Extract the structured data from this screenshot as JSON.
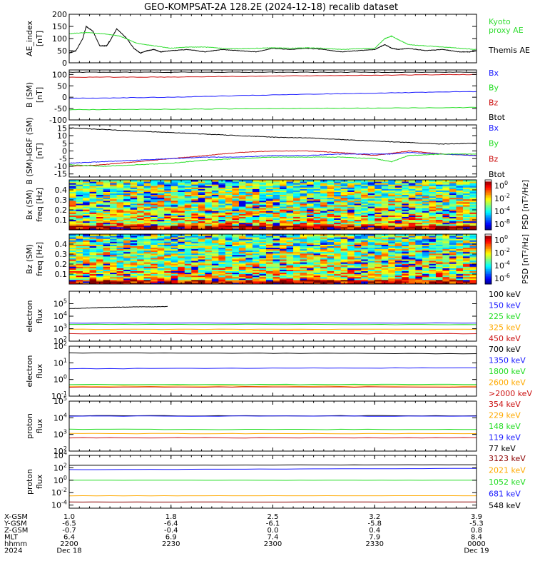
{
  "title": "GEO-KOMPSAT-2A 128.2E (2024-12-18) recalib dataset",
  "colors": {
    "black": "#000000",
    "blue": "#1a1aff",
    "green": "#22dd22",
    "red": "#cc1111",
    "orange": "#ffaa00",
    "darkred": "#8b0000",
    "ae": "#33dd33"
  },
  "chart_data": [
    {
      "type": "line",
      "id": "ae",
      "ylabel": [
        "AE_index",
        "[nT]"
      ],
      "ylim": [
        0,
        200
      ],
      "yticks": [
        0,
        50,
        100,
        150,
        200
      ],
      "xlim": [
        0,
        120
      ],
      "labels": [
        {
          "text": "Kyoto",
          "color": "#33dd33"
        },
        {
          "text": "proxy AE",
          "color": "#33dd33"
        },
        {
          "text": "Themis AE",
          "color": "#000000"
        }
      ],
      "series": [
        {
          "name": "Themis AE",
          "color": "#000000",
          "x": [
            0,
            2,
            4,
            5,
            7,
            9,
            11,
            12,
            14,
            17,
            19,
            21,
            23,
            25,
            27,
            30,
            35,
            40,
            45,
            50,
            55,
            60,
            65,
            70,
            75,
            80,
            85,
            90,
            93,
            95,
            97,
            100,
            105,
            110,
            115,
            118,
            120
          ],
          "y": [
            40,
            50,
            100,
            150,
            130,
            70,
            70,
            90,
            140,
            100,
            60,
            40,
            50,
            55,
            45,
            50,
            55,
            45,
            55,
            50,
            45,
            60,
            55,
            60,
            55,
            45,
            50,
            55,
            75,
            60,
            55,
            60,
            50,
            55,
            45,
            45,
            50
          ]
        },
        {
          "name": "Kyoto proxy AE",
          "color": "#33dd33",
          "x": [
            0,
            5,
            10,
            15,
            20,
            25,
            30,
            35,
            40,
            45,
            50,
            55,
            60,
            65,
            70,
            75,
            80,
            85,
            90,
            93,
            95,
            97,
            100,
            105,
            110,
            115,
            120
          ],
          "y": [
            120,
            125,
            120,
            110,
            80,
            70,
            60,
            65,
            65,
            60,
            58,
            60,
            62,
            60,
            62,
            60,
            55,
            58,
            60,
            100,
            110,
            95,
            75,
            70,
            65,
            60,
            55
          ]
        }
      ]
    },
    {
      "type": "line",
      "id": "bsm",
      "ylabel": [
        "B (SM)",
        "[nT]"
      ],
      "ylim": [
        -100,
        120
      ],
      "yticks": [
        -100,
        -50,
        0,
        50,
        100
      ],
      "xlim": [
        0,
        120
      ],
      "labels": [
        {
          "text": "Bx",
          "color": "#1a1aff"
        },
        {
          "text": "By",
          "color": "#22dd22"
        },
        {
          "text": "Bz",
          "color": "#cc1111"
        },
        {
          "text": "Btot",
          "color": "#000000"
        }
      ],
      "series": [
        {
          "name": "Btot",
          "color": "#000000",
          "x": [
            0,
            30,
            60,
            90,
            120
          ],
          "y": [
            110,
            110,
            110,
            110,
            110
          ]
        },
        {
          "name": "Bz",
          "color": "#cc1111",
          "x": [
            0,
            30,
            60,
            90,
            120
          ],
          "y": [
            88,
            89,
            93,
            97,
            100
          ]
        },
        {
          "name": "Bx",
          "color": "#1a1aff",
          "x": [
            0,
            30,
            60,
            90,
            120
          ],
          "y": [
            -5,
            0,
            10,
            18,
            25
          ]
        },
        {
          "name": "By",
          "color": "#22dd22",
          "x": [
            0,
            30,
            60,
            90,
            120
          ],
          "y": [
            -55,
            -53,
            -50,
            -48,
            -45
          ]
        }
      ]
    },
    {
      "type": "line",
      "id": "bigrf",
      "ylabel": [
        "B (SM)-IGRF (SM)",
        "[nT]"
      ],
      "ylim": [
        -17,
        17
      ],
      "yticks": [
        -15,
        -10,
        -5,
        0,
        5,
        10,
        15
      ],
      "xlim": [
        0,
        120
      ],
      "labels": [
        {
          "text": "Bx",
          "color": "#1a1aff"
        },
        {
          "text": "By",
          "color": "#22dd22"
        },
        {
          "text": "Bz",
          "color": "#cc1111"
        },
        {
          "text": "Btot",
          "color": "#000000"
        }
      ],
      "series": [
        {
          "name": "Btot",
          "color": "#000000",
          "x": [
            0,
            10,
            20,
            30,
            40,
            50,
            60,
            70,
            80,
            90,
            100,
            110,
            120
          ],
          "y": [
            15,
            14,
            13,
            12,
            11,
            10,
            9,
            8.5,
            7.5,
            6.5,
            5.5,
            4.5,
            5
          ]
        },
        {
          "name": "Bz",
          "color": "#cc1111",
          "x": [
            0,
            10,
            20,
            30,
            40,
            50,
            60,
            70,
            80,
            90,
            100,
            105,
            110,
            120
          ],
          "y": [
            -10,
            -9,
            -7,
            -5,
            -3,
            -1,
            0,
            0,
            -1,
            -3,
            0,
            -1,
            -2,
            -3
          ]
        },
        {
          "name": "Bx",
          "color": "#1a1aff",
          "x": [
            0,
            10,
            20,
            30,
            40,
            50,
            60,
            70,
            80,
            90,
            95,
            100,
            110,
            120
          ],
          "y": [
            -8,
            -7,
            -6,
            -5,
            -4,
            -4,
            -3,
            -3,
            -2,
            -2,
            -2,
            -1,
            -2,
            -3
          ]
        },
        {
          "name": "By",
          "color": "#22dd22",
          "x": [
            0,
            10,
            20,
            30,
            40,
            50,
            60,
            70,
            80,
            90,
            95,
            100,
            110,
            120
          ],
          "y": [
            -9,
            -10,
            -9,
            -8,
            -6,
            -5,
            -4,
            -4,
            -4,
            -5,
            -7,
            -3,
            -2,
            -2
          ]
        }
      ]
    },
    {
      "type": "heatmap",
      "id": "bxspec",
      "ylabel": [
        "Bx (SM)",
        "freq [Hz]"
      ],
      "ylim": [
        0,
        0.5
      ],
      "yticks": [
        0.1,
        0.2,
        0.3,
        0.4
      ],
      "xlim": [
        0,
        120
      ],
      "colorbar": {
        "label": "PSD [nT²/Hz]",
        "ticks": [
          "10^0",
          "10^-2",
          "10^-4",
          "10^-8"
        ]
      }
    },
    {
      "type": "heatmap",
      "id": "bzspec",
      "ylabel": [
        "Bz (SM)",
        "freq [Hz]"
      ],
      "ylim": [
        0,
        0.5
      ],
      "yticks": [
        0.1,
        0.2,
        0.3,
        0.4
      ],
      "xlim": [
        0,
        120
      ],
      "colorbar": {
        "label": "PSD [nT²/Hz]",
        "ticks": [
          "10^0",
          "10^-2",
          "10^-4",
          "10^-6"
        ]
      }
    },
    {
      "type": "line",
      "id": "e1",
      "log": true,
      "ylabel": [
        "electron",
        "flux"
      ],
      "ylim": [
        2,
        6
      ],
      "yticks": [
        "10^2",
        "10^3",
        "10^4",
        "10^5"
      ],
      "xlim": [
        0,
        120
      ],
      "labels": [
        {
          "text": "100 keV",
          "color": "#000000"
        },
        {
          "text": "150 keV",
          "color": "#1a1aff"
        },
        {
          "text": "225 keV",
          "color": "#22dd22"
        },
        {
          "text": "325 keV",
          "color": "#ffaa00"
        },
        {
          "text": "450 keV",
          "color": "#cc1111"
        }
      ],
      "series": [
        {
          "name": "100 keV",
          "color": "#000000",
          "x": [
            0,
            5,
            10,
            15,
            20,
            25,
            29
          ],
          "y": [
            4.6,
            4.65,
            4.7,
            4.72,
            4.75,
            4.75,
            4.78
          ]
        },
        {
          "name": "150 keV",
          "color": "#1a1aff",
          "x": [
            0,
            120
          ],
          "y": [
            3.45,
            3.45
          ]
        },
        {
          "name": "225 keV",
          "color": "#22dd22",
          "x": [
            0,
            120
          ],
          "y": [
            3.35,
            3.32
          ]
        },
        {
          "name": "325 keV",
          "color": "#ffaa00",
          "x": [
            0,
            120
          ],
          "y": [
            2.95,
            2.95
          ]
        },
        {
          "name": "450 keV",
          "color": "#cc1111",
          "x": [
            0,
            120
          ],
          "y": [
            2.6,
            2.6
          ]
        }
      ]
    },
    {
      "type": "line",
      "id": "e2",
      "log": true,
      "ylabel": [
        "electron",
        "flux"
      ],
      "ylim": [
        -1,
        2
      ],
      "yticks": [
        "10^-1",
        "10^0",
        "10^1",
        "10^2"
      ],
      "xlim": [
        0,
        120
      ],
      "labels": [
        {
          "text": "700 keV",
          "color": "#000000"
        },
        {
          "text": "1350 keV",
          "color": "#1a1aff"
        },
        {
          "text": "1800 keV",
          "color": "#22dd22"
        },
        {
          "text": "2600 keV",
          "color": "#ffaa00"
        },
        {
          "text": ">2000 keV",
          "color": "#cc1111"
        }
      ],
      "series": [
        {
          "name": "700 keV",
          "color": "#000000",
          "x": [
            0,
            120
          ],
          "y": [
            1.6,
            1.55
          ]
        },
        {
          "name": "1350 keV",
          "color": "#1a1aff",
          "x": [
            0,
            120
          ],
          "y": [
            0.65,
            0.7
          ]
        },
        {
          "name": "1800 keV",
          "color": "#22dd22",
          "x": [
            0,
            120
          ],
          "y": [
            -0.3,
            -0.3
          ]
        },
        {
          "name": "2600 keV",
          "color": "#ffaa00",
          "x": [
            0,
            120
          ],
          "y": [
            -0.4,
            -0.4
          ]
        },
        {
          "name": ">2000 keV",
          "color": "#cc1111",
          "x": [
            0,
            120
          ],
          "y": [
            -0.45,
            -0.45
          ]
        }
      ]
    },
    {
      "type": "line",
      "id": "p1",
      "log": true,
      "ylabel": [
        "proton",
        "flux"
      ],
      "ylim": [
        2,
        5
      ],
      "yticks": [
        "10^2",
        "10^3",
        "10^4",
        "10^5"
      ],
      "xlim": [
        0,
        120
      ],
      "labels": [
        {
          "text": "354 keV",
          "color": "#cc1111"
        },
        {
          "text": "229 keV",
          "color": "#ffaa00"
        },
        {
          "text": "148 keV",
          "color": "#22dd22"
        },
        {
          "text": "119 keV",
          "color": "#1a1aff"
        },
        {
          "text": "77 keV",
          "color": "#000000"
        }
      ],
      "series": [
        {
          "name": "77 keV",
          "color": "#000000",
          "x": [
            0,
            120
          ],
          "y": [
            4.12,
            4.12
          ]
        },
        {
          "name": "119 keV",
          "color": "#1a1aff",
          "x": [
            0,
            120
          ],
          "y": [
            4.1,
            4.1
          ]
        },
        {
          "name": "148 keV",
          "color": "#22dd22",
          "x": [
            0,
            120
          ],
          "y": [
            3.3,
            3.3
          ]
        },
        {
          "name": "229 keV",
          "color": "#ffaa00",
          "x": [
            0,
            120
          ],
          "y": [
            3.05,
            3.05
          ]
        },
        {
          "name": "354 keV",
          "color": "#cc1111",
          "x": [
            0,
            120
          ],
          "y": [
            2.8,
            2.8
          ]
        }
      ]
    },
    {
      "type": "line",
      "id": "p2",
      "log": true,
      "ylabel": [
        "proton",
        "flux"
      ],
      "ylim": [
        -4.5,
        4
      ],
      "yticks": [
        "10^-4",
        "10^-2",
        "10^0",
        "10^2",
        "10^4"
      ],
      "xlim": [
        0,
        120
      ],
      "labels": [
        {
          "text": "3123 keV",
          "color": "#8b0000"
        },
        {
          "text": "2021 keV",
          "color": "#ffaa00"
        },
        {
          "text": "1052 keV",
          "color": "#22dd22"
        },
        {
          "text": "681 keV",
          "color": "#1a1aff"
        },
        {
          "text": "548 keV",
          "color": "#000000"
        }
      ],
      "series": [
        {
          "name": "548 keV",
          "color": "#000000",
          "x": [
            0,
            120
          ],
          "y": [
            2.4,
            2.5
          ]
        },
        {
          "name": "681 keV",
          "color": "#1a1aff",
          "x": [
            0,
            120
          ],
          "y": [
            1.7,
            1.9
          ]
        },
        {
          "name": "1052 keV",
          "color": "#22dd22",
          "x": [
            0,
            120
          ],
          "y": [
            0,
            0
          ]
        },
        {
          "name": "2021 keV",
          "color": "#ffaa00",
          "x": [
            0,
            120
          ],
          "y": [
            -2.5,
            -2.5
          ]
        },
        {
          "name": "3123 keV",
          "color": "#8b0000",
          "x": [
            0,
            120
          ],
          "y": [
            -3.5,
            -3.5
          ]
        }
      ]
    }
  ],
  "xaxis": {
    "rows": [
      {
        "label": "X-GSM",
        "values": [
          "1.0",
          "1.8",
          "2.5",
          "3.2",
          "3.9"
        ]
      },
      {
        "label": "Y-GSM",
        "values": [
          "-6.5",
          "-6.4",
          "-6.1",
          "-5.8",
          "-5.3"
        ]
      },
      {
        "label": "Z-GSM",
        "values": [
          "-0.7",
          "-0.4",
          "0.0",
          "0.4",
          "0.8"
        ]
      },
      {
        "label": "MLT",
        "values": [
          "6.4",
          "6.9",
          "7.4",
          "7.9",
          "8.4"
        ]
      },
      {
        "label": "hhmm",
        "values": [
          "2200",
          "2230",
          "2300",
          "2330",
          "0000"
        ]
      },
      {
        "label": "2024",
        "values": [
          "Dec 18",
          "",
          "",
          "",
          "Dec 19"
        ]
      }
    ],
    "tick_x": [
      0,
      30,
      60,
      90,
      120
    ]
  }
}
